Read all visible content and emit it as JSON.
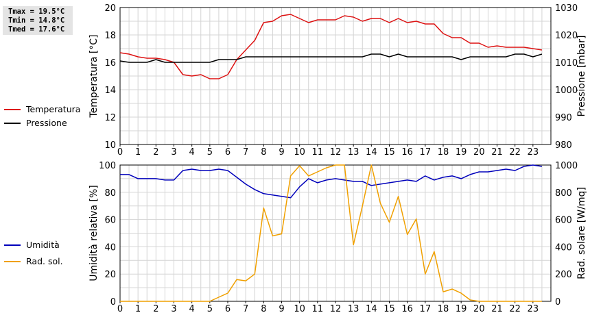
{
  "stats": {
    "tmax": "Tmax = 19.5°C",
    "tmin": "Tmin = 14.8°C",
    "tmed": "Tmed = 17.6°C"
  },
  "chart_data": [
    {
      "type": "line",
      "ylabel": "Temperatura [°C]",
      "y2label": "Pressione [mbar]",
      "ylim": [
        10,
        20
      ],
      "y2lim": [
        980,
        1030
      ],
      "xlim": [
        0,
        24
      ],
      "x_ticks": [
        "0",
        "1",
        "2",
        "3",
        "4",
        "5",
        "6",
        "7",
        "8",
        "9",
        "10",
        "11",
        "12",
        "13",
        "14",
        "15",
        "16",
        "17",
        "18",
        "19",
        "20",
        "21",
        "22",
        "23"
      ],
      "y_ticks": [
        "10",
        "12",
        "14",
        "16",
        "18",
        "20"
      ],
      "y2_ticks": [
        "980",
        "990",
        "1000",
        "1010",
        "1020",
        "1030"
      ],
      "grid": true,
      "series": [
        {
          "name": "Temperatura",
          "axis": "left",
          "color": "#dd1111",
          "x": [
            0,
            0.5,
            1,
            1.5,
            2,
            2.5,
            3,
            3.5,
            4,
            4.5,
            5,
            5.5,
            6,
            6.5,
            7,
            7.5,
            8,
            8.5,
            9,
            9.5,
            10,
            10.5,
            11,
            11.5,
            12,
            12.5,
            13,
            13.5,
            14,
            14.5,
            15,
            15.5,
            16,
            16.5,
            17,
            17.5,
            18,
            18.5,
            19,
            19.5,
            20,
            20.5,
            21,
            21.5,
            22,
            22.5,
            23,
            23.5
          ],
          "values": [
            16.7,
            16.6,
            16.4,
            16.3,
            16.3,
            16.2,
            16.0,
            15.1,
            15.0,
            15.1,
            14.8,
            14.8,
            15.1,
            16.2,
            16.9,
            17.6,
            18.9,
            19.0,
            19.4,
            19.5,
            19.2,
            18.9,
            19.1,
            19.1,
            19.1,
            19.4,
            19.3,
            19.0,
            19.2,
            19.2,
            18.9,
            19.2,
            18.9,
            19.0,
            18.8,
            18.8,
            18.1,
            17.8,
            17.8,
            17.4,
            17.4,
            17.1,
            17.2,
            17.1,
            17.1,
            17.1,
            17.0,
            16.9
          ]
        },
        {
          "name": "Pressione",
          "axis": "right",
          "color": "#000000",
          "x": [
            0,
            0.5,
            1,
            1.5,
            2,
            2.5,
            3,
            3.5,
            4,
            4.5,
            5,
            5.5,
            6,
            6.5,
            7,
            7.5,
            8,
            8.5,
            9,
            9.5,
            10,
            10.5,
            11,
            11.5,
            12,
            12.5,
            13,
            13.5,
            14,
            14.5,
            15,
            15.5,
            16,
            16.5,
            17,
            17.5,
            18,
            18.5,
            19,
            19.5,
            20,
            20.5,
            21,
            21.5,
            22,
            22.5,
            23,
            23.5
          ],
          "values": [
            1010.5,
            1010,
            1010,
            1010,
            1011,
            1010,
            1010,
            1010,
            1010,
            1010,
            1010,
            1011,
            1011,
            1011,
            1012,
            1012,
            1012,
            1012,
            1012,
            1012,
            1012,
            1012,
            1012,
            1012,
            1012,
            1012,
            1012,
            1012,
            1013,
            1013,
            1012,
            1013,
            1012,
            1012,
            1012,
            1012,
            1012,
            1012,
            1011,
            1012,
            1012,
            1012,
            1012,
            1012,
            1013,
            1013,
            1012,
            1013
          ]
        }
      ]
    },
    {
      "type": "line",
      "ylabel": "Umidità relativa [%]",
      "y2label": "Rad. solare [W/mq]",
      "ylim": [
        0,
        100
      ],
      "y2lim": [
        0,
        1000
      ],
      "xlim": [
        0,
        24
      ],
      "x_ticks": [
        "0",
        "1",
        "2",
        "3",
        "4",
        "5",
        "6",
        "7",
        "8",
        "9",
        "10",
        "11",
        "12",
        "13",
        "14",
        "15",
        "16",
        "17",
        "18",
        "19",
        "20",
        "21",
        "22",
        "23"
      ],
      "y_ticks": [
        "0",
        "20",
        "40",
        "60",
        "80",
        "100"
      ],
      "y2_ticks": [
        "0",
        "200",
        "400",
        "600",
        "800",
        "1000"
      ],
      "grid": true,
      "series": [
        {
          "name": "Umidità",
          "axis": "left",
          "color": "#0000bb",
          "x": [
            0,
            0.5,
            1,
            1.5,
            2,
            2.5,
            3,
            3.5,
            4,
            4.5,
            5,
            5.5,
            6,
            6.5,
            7,
            7.5,
            8,
            8.5,
            9,
            9.5,
            10,
            10.5,
            11,
            11.5,
            12,
            12.5,
            13,
            13.5,
            14,
            14.5,
            15,
            15.5,
            16,
            16.5,
            17,
            17.5,
            18,
            18.5,
            19,
            19.5,
            20,
            20.5,
            21,
            21.5,
            22,
            22.5,
            23,
            23.5
          ],
          "values": [
            93,
            93,
            90,
            90,
            90,
            89,
            89,
            96,
            97,
            96,
            96,
            97,
            96,
            91,
            86,
            82,
            79,
            78,
            77,
            76,
            84,
            90,
            87,
            89,
            90,
            89,
            88,
            88,
            85,
            86,
            87,
            88,
            89,
            88,
            92,
            89,
            91,
            92,
            90,
            93,
            95,
            95,
            96,
            97,
            96,
            99,
            100,
            99
          ]
        },
        {
          "name": "Rad. sol.",
          "axis": "right",
          "color": "#f0a000",
          "x": [
            0,
            0.5,
            1,
            1.5,
            2,
            2.5,
            3,
            3.5,
            4,
            4.5,
            5,
            5.5,
            6,
            6.5,
            7,
            7.5,
            8,
            8.5,
            9,
            9.5,
            10,
            10.5,
            11,
            11.5,
            12,
            12.5,
            13,
            13.5,
            14,
            14.5,
            15,
            15.5,
            16,
            16.5,
            17,
            17.5,
            18,
            18.5,
            19,
            19.5,
            20,
            20.5,
            21,
            21.5,
            22,
            22.5,
            23,
            23.5
          ],
          "values": [
            0,
            0,
            0,
            0,
            0,
            0,
            0,
            0,
            0,
            0,
            0,
            30,
            60,
            160,
            150,
            200,
            685,
            480,
            495,
            920,
            995,
            920,
            950,
            980,
            1000,
            1000,
            415,
            700,
            1000,
            720,
            580,
            770,
            490,
            605,
            200,
            365,
            70,
            90,
            60,
            10,
            0,
            0,
            0,
            0,
            0,
            0,
            0,
            0
          ]
        }
      ]
    }
  ]
}
